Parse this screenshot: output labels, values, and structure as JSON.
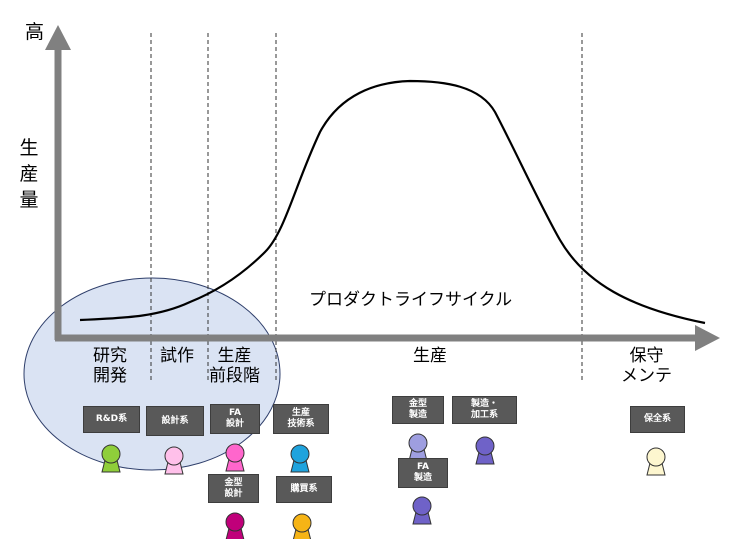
{
  "axis": {
    "top_label": "高",
    "y_label": "生産量"
  },
  "curve_label": "プロダクトライフサイクル",
  "phases": {
    "research": "研究\n開発",
    "prototype": "試作",
    "preproduction": "生産\n前段階",
    "production": "生産",
    "maintenance": "保守\nメンテ"
  },
  "roles": {
    "rd": "R&D系",
    "design": "設計系",
    "fa_design": "FA\n設計",
    "prod_tech": "生産\n技術系",
    "mold_design": "金型\n設計",
    "purchasing": "購買系",
    "mold_mfg": "金型\n製造",
    "mfg_processing": "製造・\n加工系",
    "fa_mfg": "FA\n製造",
    "maintenance": "保全系"
  },
  "colors": {
    "axis": "#808080",
    "circle_fill": "#dae3f3",
    "circle_stroke": "#2f3f6b",
    "rd": "#8fce3a",
    "design": "#ffc0ea",
    "fa_design": "#ff66cc",
    "prod_tech": "#1fa3dd",
    "mold_design": "#c0007a",
    "purchasing": "#f6b416",
    "mold_mfg": "#9e9ee0",
    "mfg_processing": "#6f62c8",
    "fa_mfg": "#6f62c8",
    "maintenance": "#fdf6cf"
  }
}
